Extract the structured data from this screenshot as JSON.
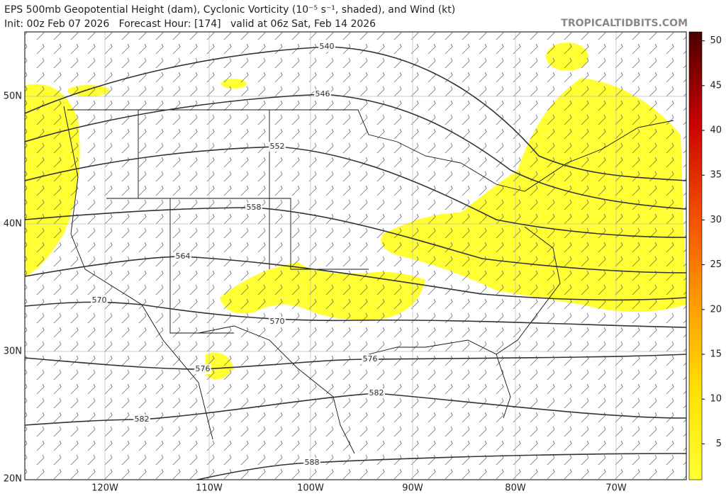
{
  "header": {
    "title": "EPS 500mb Geopotential Height (dam), Cyclonic Vorticity (10⁻⁵ s⁻¹, shaded), and Wind (kt)",
    "init": "Init: 00z Feb 07 2026   Forecast Hour: [174]   valid at 06z Sat, Feb 14 2026",
    "site": "TROPICALTIDBITS.COM"
  },
  "map": {
    "lat_labels": [
      "50N",
      "40N",
      "30N",
      "20N"
    ],
    "lon_labels": [
      "120W",
      "110W",
      "100W",
      "90W",
      "80W",
      "70W"
    ],
    "contour_labels": [
      "540",
      "546",
      "552",
      "558",
      "564",
      "570",
      "570",
      "576",
      "576",
      "582",
      "582",
      "588"
    ]
  },
  "colorbar": {
    "range": [
      1,
      51
    ],
    "ticks": [
      5,
      10,
      15,
      20,
      25,
      30,
      35,
      40,
      45,
      50
    ]
  }
}
